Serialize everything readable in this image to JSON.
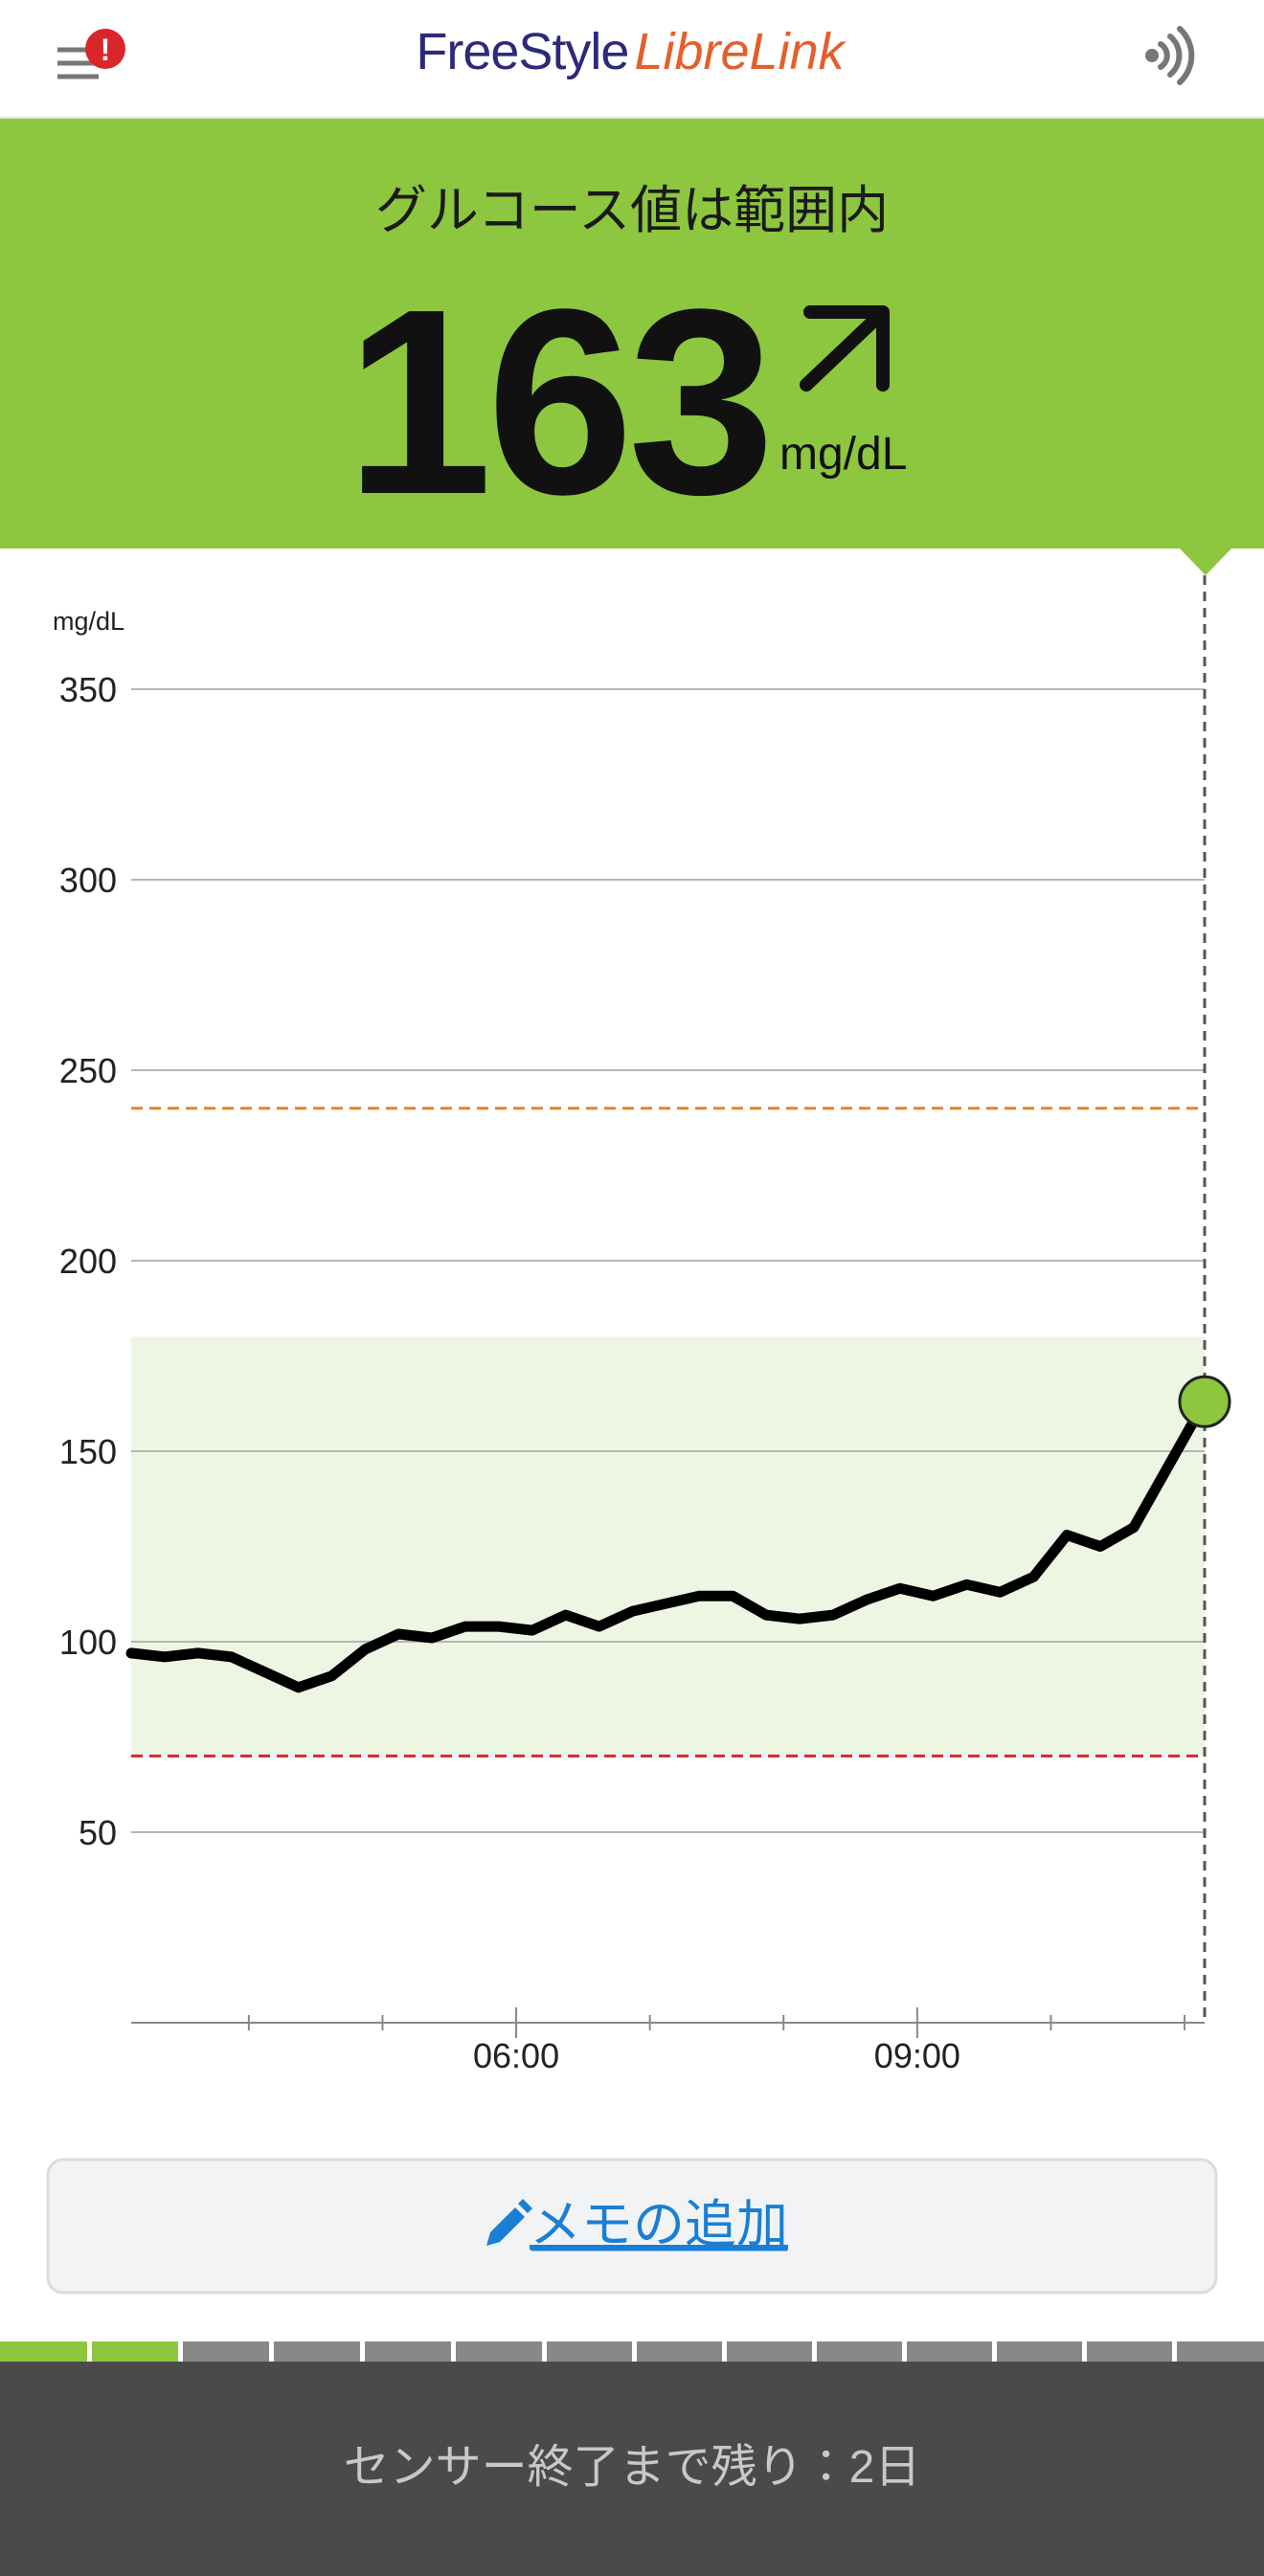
{
  "header": {
    "logo_primary": "FreeStyle",
    "logo_secondary": "LibreLink",
    "alert_badge": "!"
  },
  "status": {
    "label": "グルコース値は範囲内",
    "value": 163,
    "unit": "mg/dL"
  },
  "chart_data": {
    "type": "line",
    "y_axis_label": "mg/dL",
    "x": [
      3.12,
      3.37,
      3.62,
      3.87,
      4.12,
      4.37,
      4.62,
      4.87,
      5.12,
      5.37,
      5.62,
      5.87,
      6.12,
      6.37,
      6.62,
      6.87,
      7.12,
      7.37,
      7.62,
      7.87,
      8.12,
      8.37,
      8.62,
      8.87,
      9.12,
      9.37,
      9.62,
      9.87,
      10.12,
      10.37,
      10.62,
      11.15
    ],
    "values": [
      97,
      96,
      97,
      96,
      92,
      88,
      91,
      98,
      102,
      101,
      104,
      104,
      103,
      107,
      104,
      108,
      110,
      112,
      112,
      107,
      106,
      107,
      111,
      114,
      112,
      115,
      113,
      117,
      128,
      125,
      130,
      163
    ],
    "color": "#000000",
    "ylim": [
      0,
      350
    ],
    "yticks": [
      50,
      100,
      150,
      200,
      250,
      300,
      350
    ],
    "xlim": [
      3.12,
      11.15
    ],
    "xticks": [
      {
        "value": 6,
        "label": "06:00"
      },
      {
        "value": 9,
        "label": "09:00"
      }
    ],
    "minor_xticks": [
      4,
      5,
      7,
      8,
      10,
      11
    ],
    "grid": true,
    "target_range": [
      70,
      180
    ],
    "target_range_color": "#edf5e3",
    "low_threshold": 70,
    "low_threshold_color": "#d9262b",
    "high_threshold": 240,
    "high_threshold_color": "#e8822a",
    "current_marker_color": "#8dc63f"
  },
  "memo_button": {
    "label": "メモの追加"
  },
  "footer": {
    "sensor_remaining": "センサー終了まで残り：2日"
  }
}
